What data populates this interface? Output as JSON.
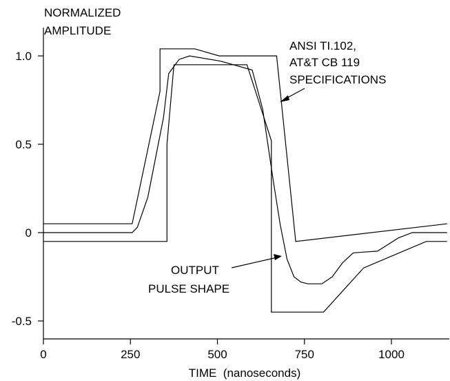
{
  "chart_data": {
    "type": "line",
    "ylabel_lines": [
      "NORMALIZED",
      "AMPLITUDE"
    ],
    "xlabel": "TIME  (nanoseconds)",
    "xlim": [
      0,
      1160
    ],
    "ylim": [
      -0.6,
      1.15
    ],
    "x_ticks": [
      0,
      250,
      500,
      750,
      1000
    ],
    "x_tick_labels": [
      "0",
      "250",
      "500",
      "750",
      "1000"
    ],
    "y_ticks": [
      1.0,
      0.5,
      0,
      -0.5
    ],
    "y_tick_labels": [
      "1.0",
      "0.5",
      "0",
      "-0.5"
    ],
    "grid": false,
    "legend": "none",
    "series": [
      {
        "role": "upper-mask",
        "x": [
          0,
          255,
          335,
          335,
          435,
          505,
          670,
          725,
          1160
        ],
        "y": [
          0.05,
          0.05,
          0.8,
          1.04,
          1.04,
          1.0,
          1.0,
          -0.05,
          0.05
        ]
      },
      {
        "role": "lower-mask",
        "x": [
          0,
          355,
          355,
          375,
          585,
          655,
          655,
          805,
          920,
          1100,
          1160
        ],
        "y": [
          -0.05,
          -0.05,
          0.5,
          0.95,
          0.95,
          0.52,
          -0.45,
          -0.45,
          -0.2,
          -0.05,
          -0.05
        ]
      },
      {
        "role": "output-pulse",
        "x": [
          0,
          255,
          270,
          300,
          345,
          360,
          390,
          420,
          510,
          600,
          630,
          660,
          680,
          700,
          720,
          740,
          760,
          800,
          830,
          860,
          890,
          920,
          960,
          980,
          1020,
          1060,
          1160
        ],
        "y": [
          0.0,
          0.0,
          0.03,
          0.2,
          0.65,
          0.9,
          0.98,
          1.0,
          0.97,
          0.92,
          0.7,
          0.3,
          0.05,
          -0.15,
          -0.25,
          -0.28,
          -0.29,
          -0.29,
          -0.25,
          -0.17,
          -0.115,
          -0.11,
          -0.105,
          -0.08,
          -0.03,
          0.0,
          0.0
        ]
      }
    ],
    "annotations": [
      {
        "text_lines": [
          "ANSI TI.102,",
          "AT&T CB 119",
          "SPECIFICATIONS"
        ]
      },
      {
        "text_lines": [
          "OUTPUT",
          "PULSE SHAPE"
        ]
      }
    ]
  }
}
